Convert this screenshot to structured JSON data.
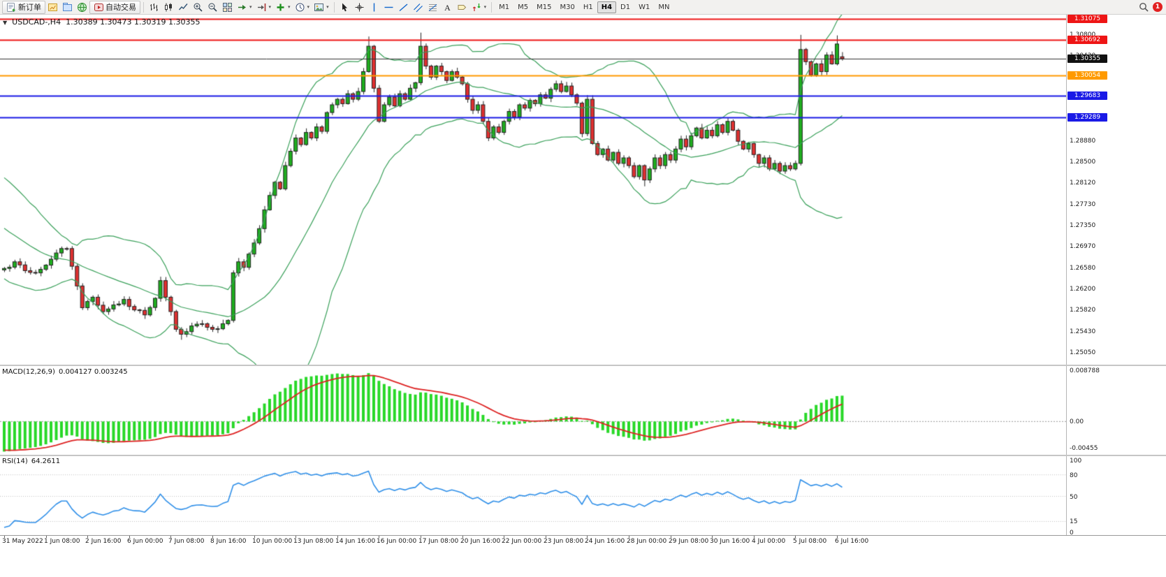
{
  "toolbar": {
    "groups": [
      {
        "name": "standard",
        "items": [
          {
            "name": "new-order-button",
            "icon": "new-order-icon",
            "label": "新订单"
          },
          {
            "name": "new-chart-button",
            "icon": "new-chart-icon"
          },
          {
            "name": "profiles-button",
            "icon": "profiles-icon"
          },
          {
            "name": "community-button",
            "icon": "community-icon"
          },
          {
            "name": "autotrading-button",
            "icon": "autotrading-icon",
            "label": "自动交易"
          }
        ]
      },
      {
        "name": "charts",
        "items": [
          {
            "name": "bars-button",
            "icon": "bars-icon"
          },
          {
            "name": "candlesticks-button",
            "icon": "candles-icon"
          },
          {
            "name": "line-chart-button",
            "icon": "line-chart-icon"
          },
          {
            "name": "zoom-in-button",
            "icon": "zoom-in-icon"
          },
          {
            "name": "zoom-out-button",
            "icon": "zoom-out-icon"
          },
          {
            "name": "tile-windows-button",
            "icon": "tile-windows-icon"
          },
          {
            "name": "auto-scroll-button",
            "icon": "autoscroll-icon",
            "dropdown": true
          },
          {
            "name": "chart-shift-button",
            "icon": "chart-shift-icon",
            "dropdown": true
          },
          {
            "name": "indicators-button",
            "icon": "add-indicator-icon",
            "dropdown": true
          },
          {
            "name": "periods-button",
            "icon": "periods-icon",
            "dropdown": true
          },
          {
            "name": "templates-button",
            "icon": "templates-icon",
            "dropdown": true
          }
        ]
      },
      {
        "name": "line-studies",
        "items": [
          {
            "name": "cursor-button",
            "icon": "cursor-icon"
          },
          {
            "name": "crosshair-button",
            "icon": "crosshair-icon"
          },
          {
            "name": "vertical-line-button",
            "icon": "vline-icon"
          },
          {
            "name": "horizontal-line-button",
            "icon": "hline-icon"
          },
          {
            "name": "trendline-button",
            "icon": "trendline-icon"
          },
          {
            "name": "channel-button",
            "icon": "channel-icon"
          },
          {
            "name": "fibonacci-button",
            "icon": "fibo-icon"
          },
          {
            "name": "text-button",
            "icon": "text-icon"
          },
          {
            "name": "arrow-label-button",
            "icon": "label-icon"
          },
          {
            "name": "arrows-button",
            "icon": "arrows-icon",
            "dropdown": true
          }
        ]
      },
      {
        "name": "timeframes",
        "items": [
          {
            "name": "timeframe-m1",
            "label": "M1"
          },
          {
            "name": "timeframe-m5",
            "label": "M5"
          },
          {
            "name": "timeframe-m15",
            "label": "M15"
          },
          {
            "name": "timeframe-m30",
            "label": "M30"
          },
          {
            "name": "timeframe-h1",
            "label": "H1"
          },
          {
            "name": "timeframe-h4",
            "label": "H4",
            "active": true
          },
          {
            "name": "timeframe-d1",
            "label": "D1"
          },
          {
            "name": "timeframe-w1",
            "label": "W1"
          },
          {
            "name": "timeframe-mn",
            "label": "MN"
          }
        ]
      }
    ],
    "right": {
      "search_icon": "search-icon",
      "notification_count": "1"
    }
  },
  "chart": {
    "symbol_label": "USDCAD-,H4",
    "ohlc_text": "1.30389 1.30473 1.30319 1.30355",
    "levels": [
      {
        "label": "1.31075",
        "color": "#ee1515",
        "type": "line"
      },
      {
        "label": "1.30692",
        "color": "#ee1515",
        "type": "line"
      },
      {
        "label": "1.30355",
        "color": "#111111",
        "type": "current"
      },
      {
        "label": "1.30054",
        "color": "#ff9a00",
        "type": "line"
      },
      {
        "label": "1.29683",
        "color": "#1a1ae6",
        "type": "line"
      },
      {
        "label": "1.29289",
        "color": "#1a1ae6",
        "type": "line"
      }
    ],
    "price_axis": {
      "labels": [
        "1.30800",
        "1.30420",
        "1.30040",
        "1.29660",
        "1.29280",
        "1.28880",
        "1.28500",
        "1.28120",
        "1.27730",
        "1.27350",
        "1.26970",
        "1.26580",
        "1.26200",
        "1.25820",
        "1.25430",
        "1.25050"
      ]
    },
    "time_axis": [
      "31 May 2022",
      "1 Jun 08:00",
      "2 Jun 16:00",
      "6 Jun 00:00",
      "7 Jun 08:00",
      "8 Jun 16:00",
      "10 Jun 00:00",
      "13 Jun 08:00",
      "14 Jun 16:00",
      "16 Jun 00:00",
      "17 Jun 08:00",
      "20 Jun 16:00",
      "22 Jun 00:00",
      "23 Jun 08:00",
      "24 Jun 16:00",
      "28 Jun 00:00",
      "29 Jun 08:00",
      "30 Jun 16:00",
      "4 Jul 00:00",
      "5 Jul 08:00",
      "6 Jul 16:00"
    ]
  },
  "macd": {
    "label": "MACD(12,26,9)",
    "values": "0.004127 0.003245",
    "axis": [
      "0.008788",
      "0.00",
      "-0.00455"
    ]
  },
  "rsi": {
    "label": "RSI(14)",
    "value_text": "64.2611",
    "axis": [
      "100",
      "80",
      "50",
      "15",
      "0"
    ],
    "levels": [
      80,
      50,
      15
    ]
  },
  "chart_data": {
    "type": "candlestick",
    "title": "USDCAD-,H4",
    "symbol": "USDCAD",
    "timeframe": "H4",
    "price_range_visible": [
      1.2482,
      1.3115
    ],
    "x_labels_every_n_bars": 8,
    "total_bars": 162,
    "last_bar_ohlc": {
      "open": 1.30389,
      "high": 1.30473,
      "low": 1.30319,
      "close": 1.30355
    },
    "horizontal_levels": [
      1.31075,
      1.30692,
      1.30054,
      1.29683,
      1.29289
    ],
    "overlays": [
      {
        "name": "Bollinger Bands",
        "period": 20,
        "deviation": 2,
        "color": "#3aa05a"
      }
    ],
    "indicators": [
      {
        "name": "MACD",
        "params": "12,26,9",
        "current_values": [
          0.004127,
          0.003245
        ],
        "axis_max": 0.008788,
        "axis_min": -0.00455,
        "histogram_color": "#28d828",
        "signal_color": "#dd2222"
      },
      {
        "name": "RSI",
        "params": "14",
        "current_value": 64.2611,
        "levels": [
          80,
          50,
          15
        ],
        "line_color": "#2f8fe8"
      }
    ],
    "prehistory": {
      "bars": 42,
      "from": 1.2985,
      "to": 1.2662
    },
    "wick_marks": [
      [
        34,
        "low",
        1.2527
      ],
      [
        70,
        "high",
        1.30755
      ],
      [
        80,
        "high",
        1.30825
      ],
      [
        123,
        "low",
        1.28045
      ],
      [
        153,
        "high",
        1.30785
      ],
      [
        160,
        "high",
        1.30775
      ]
    ],
    "close_path_anchors": [
      [
        0,
        1.2656
      ],
      [
        2,
        1.2668
      ],
      [
        4,
        1.2652
      ],
      [
        6,
        1.2648
      ],
      [
        8,
        1.2662
      ],
      [
        10,
        1.2684
      ],
      [
        12,
        1.2692
      ],
      [
        13,
        1.266
      ],
      [
        15,
        1.2585
      ],
      [
        17,
        1.2604
      ],
      [
        19,
        1.2578
      ],
      [
        21,
        1.259
      ],
      [
        23,
        1.26
      ],
      [
        25,
        1.2581
      ],
      [
        27,
        1.2572
      ],
      [
        29,
        1.2602
      ],
      [
        30,
        1.2634
      ],
      [
        31,
        1.2604
      ],
      [
        32,
        1.2578
      ],
      [
        33,
        1.2546
      ],
      [
        34,
        1.2537
      ],
      [
        36,
        1.2552
      ],
      [
        38,
        1.2556
      ],
      [
        40,
        1.2546
      ],
      [
        42,
        1.2556
      ],
      [
        43,
        1.2562
      ],
      [
        44,
        1.2648
      ],
      [
        45,
        1.2668
      ],
      [
        46,
        1.2658
      ],
      [
        47,
        1.2682
      ],
      [
        48,
        1.2702
      ],
      [
        49,
        1.2728
      ],
      [
        50,
        1.2762
      ],
      [
        51,
        1.2788
      ],
      [
        52,
        1.2812
      ],
      [
        53,
        1.28
      ],
      [
        54,
        1.2842
      ],
      [
        55,
        1.2868
      ],
      [
        56,
        1.2892
      ],
      [
        57,
        1.288
      ],
      [
        58,
        1.2902
      ],
      [
        59,
        1.2892
      ],
      [
        60,
        1.2912
      ],
      [
        61,
        1.2904
      ],
      [
        62,
        1.2938
      ],
      [
        63,
        1.2952
      ],
      [
        64,
        1.2962
      ],
      [
        65,
        1.2954
      ],
      [
        66,
        1.2972
      ],
      [
        67,
        1.2962
      ],
      [
        68,
        1.2976
      ],
      [
        69,
        1.3012
      ],
      [
        70,
        1.3058
      ],
      [
        71,
        1.2982
      ],
      [
        72,
        1.2922
      ],
      [
        73,
        1.2952
      ],
      [
        74,
        1.2966
      ],
      [
        75,
        1.295
      ],
      [
        76,
        1.2972
      ],
      [
        77,
        1.2962
      ],
      [
        78,
        1.2982
      ],
      [
        79,
        1.2992
      ],
      [
        80,
        1.3058
      ],
      [
        81,
        1.3022
      ],
      [
        82,
        1.3002
      ],
      [
        83,
        1.3022
      ],
      [
        84,
        1.3012
      ],
      [
        85,
        1.2996
      ],
      [
        86,
        1.3012
      ],
      [
        87,
        1.3002
      ],
      [
        88,
        1.299
      ],
      [
        89,
        1.2962
      ],
      [
        90,
        1.2942
      ],
      [
        91,
        1.2952
      ],
      [
        92,
        1.2922
      ],
      [
        93,
        1.2892
      ],
      [
        94,
        1.2912
      ],
      [
        95,
        1.2902
      ],
      [
        96,
        1.2922
      ],
      [
        97,
        1.294
      ],
      [
        98,
        1.293
      ],
      [
        99,
        1.2952
      ],
      [
        100,
        1.2946
      ],
      [
        101,
        1.296
      ],
      [
        102,
        1.2954
      ],
      [
        103,
        1.297
      ],
      [
        104,
        1.2964
      ],
      [
        105,
        1.298
      ],
      [
        106,
        1.299
      ],
      [
        107,
        1.2976
      ],
      [
        108,
        1.2986
      ],
      [
        109,
        1.297
      ],
      [
        110,
        1.2955
      ],
      [
        111,
        1.29
      ],
      [
        112,
        1.2962
      ],
      [
        113,
        1.2882
      ],
      [
        114,
        1.2862
      ],
      [
        115,
        1.2872
      ],
      [
        116,
        1.2852
      ],
      [
        117,
        1.2866
      ],
      [
        118,
        1.2846
      ],
      [
        119,
        1.2856
      ],
      [
        120,
        1.2842
      ],
      [
        121,
        1.2822
      ],
      [
        122,
        1.2842
      ],
      [
        123,
        1.2816
      ],
      [
        124,
        1.2836
      ],
      [
        125,
        1.2856
      ],
      [
        126,
        1.2842
      ],
      [
        127,
        1.2862
      ],
      [
        128,
        1.2852
      ],
      [
        129,
        1.2872
      ],
      [
        130,
        1.289
      ],
      [
        131,
        1.2876
      ],
      [
        132,
        1.2896
      ],
      [
        133,
        1.291
      ],
      [
        134,
        1.2892
      ],
      [
        135,
        1.2906
      ],
      [
        136,
        1.2896
      ],
      [
        137,
        1.2916
      ],
      [
        138,
        1.2902
      ],
      [
        139,
        1.2922
      ],
      [
        140,
        1.2906
      ],
      [
        141,
        1.2886
      ],
      [
        142,
        1.2872
      ],
      [
        143,
        1.2882
      ],
      [
        144,
        1.2862
      ],
      [
        145,
        1.2846
      ],
      [
        146,
        1.2856
      ],
      [
        147,
        1.2836
      ],
      [
        148,
        1.2846
      ],
      [
        149,
        1.2832
      ],
      [
        150,
        1.2842
      ],
      [
        151,
        1.2836
      ],
      [
        152,
        1.2846
      ],
      [
        153,
        1.3052
      ],
      [
        154,
        1.303
      ],
      [
        155,
        1.3006
      ],
      [
        156,
        1.3026
      ],
      [
        157,
        1.3012
      ],
      [
        158,
        1.3042
      ],
      [
        159,
        1.3026
      ],
      [
        160,
        1.3062
      ],
      [
        161,
        1.30355
      ]
    ]
  }
}
